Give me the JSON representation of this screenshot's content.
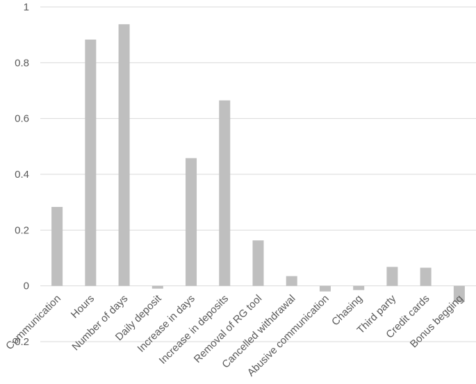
{
  "chart_data": {
    "type": "bar",
    "title": "",
    "xlabel": "",
    "ylabel": "",
    "ylim": [
      -0.2,
      1.0
    ],
    "y_ticks": [
      -0.2,
      0,
      0.2,
      0.4,
      0.6,
      0.8,
      1
    ],
    "y_tick_labels": [
      "-0.2",
      "0",
      "0.2",
      "0.4",
      "0.6",
      "0.8",
      "1"
    ],
    "grid": true,
    "bar_color": "#bfbfbf",
    "categories": [
      "Communication",
      "Hours",
      "Number of days",
      "Daily deposit",
      "Increase in days",
      "Increase in deposits",
      "Removal of RG tool",
      "Cancelled withdrawal",
      "Abusive communication",
      "Chasing",
      "Third party",
      "Credit cards",
      "Bonus begging"
    ],
    "values": [
      0.283,
      0.883,
      0.938,
      -0.01,
      0.458,
      0.665,
      0.163,
      0.035,
      -0.02,
      -0.015,
      0.068,
      0.065,
      -0.058
    ]
  }
}
